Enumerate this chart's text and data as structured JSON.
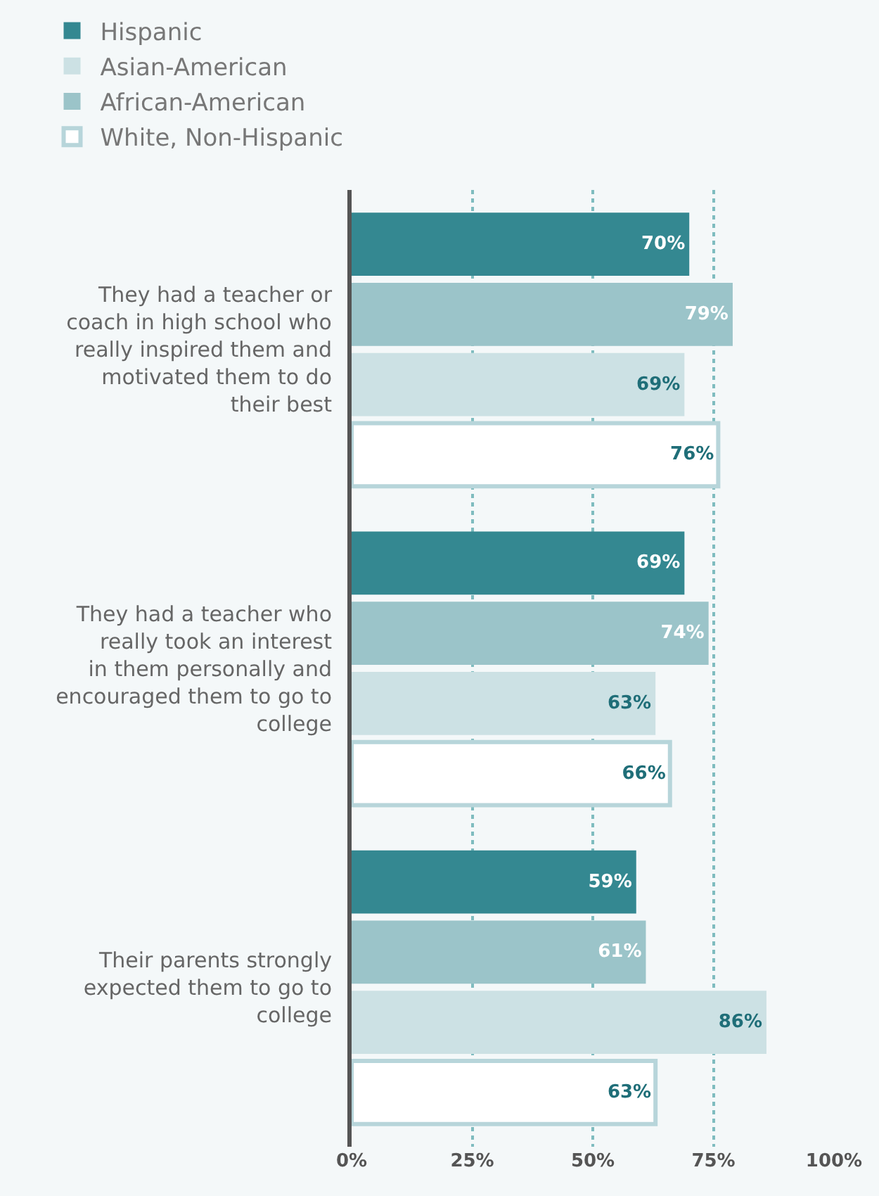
{
  "chart_data": {
    "type": "bar",
    "orientation": "horizontal",
    "categories": [
      "They had a teacher or coach in high school who really inspired them and motivated them to do their best",
      "They had a teacher who really took an interest in them personally and encouraged them to go to college",
      "Their parents strongly expected them to go to college"
    ],
    "series": [
      {
        "name": "Hispanic",
        "color": "#348891",
        "values": [
          70,
          69,
          59
        ],
        "value_labels": [
          "70%",
          "69%",
          "59%"
        ]
      },
      {
        "name": "African-American",
        "color": "#9bc4c9",
        "values": [
          79,
          74,
          61
        ],
        "value_labels": [
          "79%",
          "74%",
          "61%"
        ]
      },
      {
        "name": "Asian-American",
        "color": "#cce1e4",
        "values": [
          69,
          63,
          86
        ],
        "value_labels": [
          "69%",
          "63%",
          "86%"
        ]
      },
      {
        "name": "White, Non-Hispanic",
        "color": "#ffffff",
        "values": [
          76,
          66,
          63
        ],
        "value_labels": [
          "76%",
          "66%",
          "63%"
        ]
      }
    ],
    "xlim": [
      0,
      100
    ],
    "xticks": [
      {
        "value": 0,
        "label": "0%"
      },
      {
        "value": 25,
        "label": "25%"
      },
      {
        "value": 50,
        "label": "50%"
      },
      {
        "value": 75,
        "label": "75%"
      },
      {
        "value": 100,
        "label": "100%"
      }
    ],
    "grid": "x",
    "legend": "top"
  }
}
